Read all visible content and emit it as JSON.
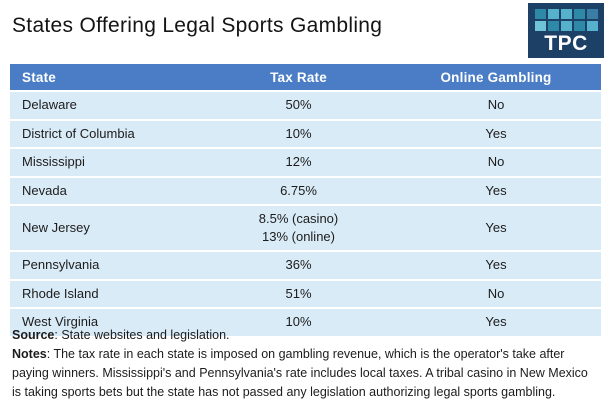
{
  "title": "States Offering Legal Sports Gambling",
  "logo": {
    "text": "TPC",
    "background": "#1d4166",
    "grid_colors": [
      "#2e88a8",
      "#56b2cc",
      "#56b2cc",
      "#2e88a8",
      "#3a7ea6",
      "#6fc3d8",
      "#2e88a8",
      "#56b2cc",
      "#2e88a8",
      "#56b2cc"
    ]
  },
  "colors": {
    "header_bar": "#4a7dc6",
    "header_text": "#ffffff",
    "row_background": "#d9ebf7",
    "row_separator": "#ffffff",
    "body_text": "#1c1c1c"
  },
  "table": {
    "columns": [
      "State",
      "Tax Rate",
      "Online Gambling"
    ],
    "rows": [
      {
        "state": "Delaware",
        "tax_rate": "50%",
        "online": "No"
      },
      {
        "state": "District of Columbia",
        "tax_rate": "10%",
        "online": "Yes"
      },
      {
        "state": "Mississippi",
        "tax_rate": "12%",
        "online": "No"
      },
      {
        "state": "Nevada",
        "tax_rate": "6.75%",
        "online": "Yes"
      },
      {
        "state": "New Jersey",
        "tax_rate": "8.5% (casino)\n13% (online)",
        "online": "Yes"
      },
      {
        "state": "Pennsylvania",
        "tax_rate": "36%",
        "online": "Yes"
      },
      {
        "state": "Rhode Island",
        "tax_rate": "51%",
        "online": "No"
      },
      {
        "state": "West Virginia",
        "tax_rate": "10%",
        "online": "Yes"
      }
    ]
  },
  "footnotes": {
    "source_label": "Source",
    "source_text": ": State websites and legislation.",
    "notes_label": "Notes",
    "notes_text": ": The tax rate in each state is imposed on gambling revenue, which is the operator's take after paying winners. Mississippi's and Pennsylvania's rate includes local taxes. A tribal casino in New Mexico is taking sports bets but the state has not passed any legislation authorizing legal sports gambling."
  },
  "chart_data": {
    "type": "table",
    "title": "States Offering Legal Sports Gambling",
    "columns": [
      "State",
      "Tax Rate",
      "Online Gambling"
    ],
    "rows": [
      [
        "Delaware",
        "50%",
        "No"
      ],
      [
        "District of Columbia",
        "10%",
        "Yes"
      ],
      [
        "Mississippi",
        "12%",
        "No"
      ],
      [
        "Nevada",
        "6.75%",
        "Yes"
      ],
      [
        "New Jersey",
        "8.5% (casino); 13% (online)",
        "Yes"
      ],
      [
        "Pennsylvania",
        "36%",
        "Yes"
      ],
      [
        "Rhode Island",
        "51%",
        "No"
      ],
      [
        "West Virginia",
        "10%",
        "Yes"
      ]
    ],
    "source": "State websites and legislation.",
    "notes": "The tax rate in each state is imposed on gambling revenue, which is the operator's take after paying winners. Mississippi's and Pennsylvania's rate includes local taxes. A tribal casino in New Mexico is taking sports bets but the state has not passed any legislation authorizing legal sports gambling."
  }
}
